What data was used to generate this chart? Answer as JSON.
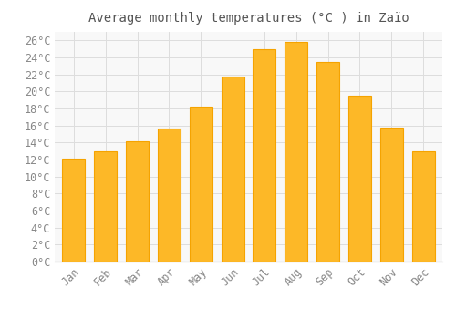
{
  "title": "Average monthly temperatures (°C ) in Zaïo",
  "months": [
    "Jan",
    "Feb",
    "Mar",
    "Apr",
    "May",
    "Jun",
    "Jul",
    "Aug",
    "Sep",
    "Oct",
    "Nov",
    "Dec"
  ],
  "values": [
    12.1,
    13.0,
    14.1,
    15.6,
    18.2,
    21.8,
    25.0,
    25.8,
    23.5,
    19.5,
    15.8,
    13.0
  ],
  "bar_color": "#FDB827",
  "bar_edge_color": "#F5A300",
  "background_color": "#FFFFFF",
  "plot_bg_color": "#F8F8F8",
  "grid_color": "#DDDDDD",
  "text_color": "#888888",
  "title_color": "#555555",
  "ylim": [
    0,
    27
  ],
  "yticks": [
    0,
    2,
    4,
    6,
    8,
    10,
    12,
    14,
    16,
    18,
    20,
    22,
    24,
    26
  ],
  "title_fontsize": 10,
  "tick_fontsize": 8.5
}
